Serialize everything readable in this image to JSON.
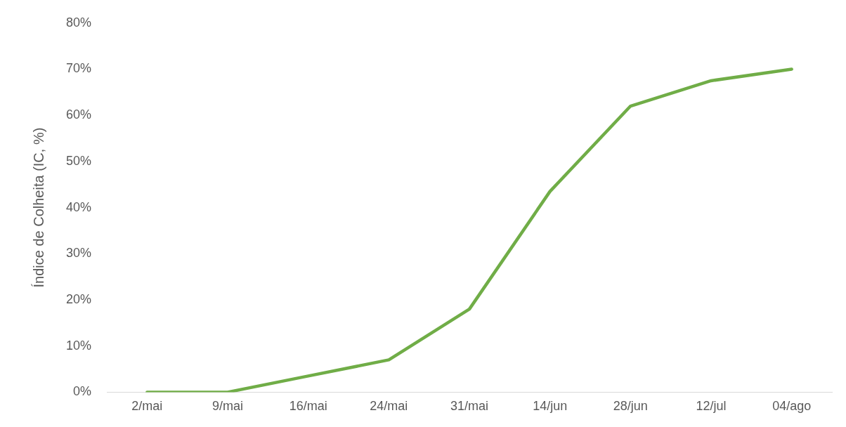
{
  "chart_data": {
    "type": "line",
    "ylabel": "Índice de Colheita (IC, %)",
    "categories": [
      "2/mai",
      "9/mai",
      "16/mai",
      "24/mai",
      "31/mai",
      "14/jun",
      "28/jun",
      "12/jul",
      "04/ago"
    ],
    "series": [
      {
        "color": "#70ad47",
        "values": [
          0,
          0,
          3.5,
          7,
          18,
          43.5,
          62,
          67.5,
          70
        ]
      }
    ],
    "ylim": [
      0,
      80
    ],
    "yticks": [
      {
        "value": 0,
        "label": "0%"
      },
      {
        "value": 10,
        "label": "10%"
      },
      {
        "value": 20,
        "label": "20%"
      },
      {
        "value": 30,
        "label": "30%"
      },
      {
        "value": 40,
        "label": "40%"
      },
      {
        "value": 50,
        "label": "50%"
      },
      {
        "value": 60,
        "label": "60%"
      },
      {
        "value": 70,
        "label": "70%"
      },
      {
        "value": 80,
        "label": "80%"
      }
    ],
    "grid": false,
    "legend": false,
    "marker": "none",
    "line_style": "solid"
  }
}
